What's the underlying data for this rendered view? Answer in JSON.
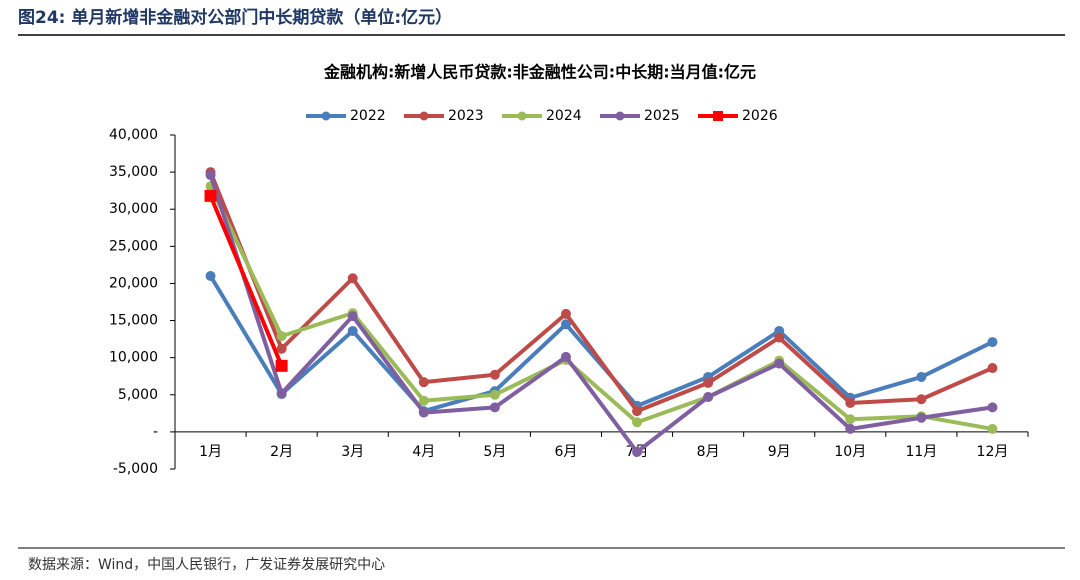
{
  "header": {
    "title": "图24:  单月新增非金融对公部门中长期贷款（单位:亿元）"
  },
  "source": "数据来源：Wind，中国人民银行，广发证券发展研究中心",
  "chart_data": {
    "type": "line",
    "title": "金融机构:新增人民币贷款:非金融性公司:中长期:当月值:亿元",
    "categories": [
      "1月",
      "2月",
      "3月",
      "4月",
      "5月",
      "6月",
      "7月",
      "8月",
      "9月",
      "10月",
      "11月",
      "12月"
    ],
    "series": [
      {
        "name": "2022",
        "color": "#4a7ebb",
        "marker": "circle",
        "values": [
          21000,
          5100,
          13600,
          2800,
          5500,
          14500,
          3500,
          7400,
          13600,
          4600,
          7400,
          12100
        ]
      },
      {
        "name": "2023",
        "color": "#be4b48",
        "marker": "circle",
        "values": [
          35000,
          11200,
          20700,
          6700,
          7700,
          15900,
          2800,
          6600,
          12700,
          3900,
          4400,
          8600
        ]
      },
      {
        "name": "2024",
        "color": "#9bbb59",
        "marker": "circle",
        "values": [
          33100,
          12900,
          16000,
          4200,
          5000,
          9700,
          1300,
          4700,
          9600,
          1700,
          2100,
          400
        ]
      },
      {
        "name": "2025",
        "color": "#7f5fa0",
        "marker": "circle",
        "values": [
          34600,
          5200,
          15600,
          2600,
          3300,
          10100,
          -2700,
          4700,
          9200,
          400,
          1900,
          3300
        ]
      },
      {
        "name": "2026",
        "color": "#ff0000",
        "marker": "square",
        "values": [
          31800,
          8900,
          null,
          null,
          null,
          null,
          null,
          null,
          null,
          null,
          null,
          null
        ]
      }
    ],
    "ylim": [
      -5000,
      40000
    ],
    "yticks": [
      {
        "value": -5000,
        "label": "-5,000"
      },
      {
        "value": 0,
        "label": "-"
      },
      {
        "value": 5000,
        "label": "5,000"
      },
      {
        "value": 10000,
        "label": "10,000"
      },
      {
        "value": 15000,
        "label": "15,000"
      },
      {
        "value": 20000,
        "label": "20,000"
      },
      {
        "value": 25000,
        "label": "25,000"
      },
      {
        "value": 30000,
        "label": "30,000"
      },
      {
        "value": 35000,
        "label": "35,000"
      },
      {
        "value": 40000,
        "label": "40,000"
      }
    ],
    "grid": false,
    "legend": "top"
  }
}
